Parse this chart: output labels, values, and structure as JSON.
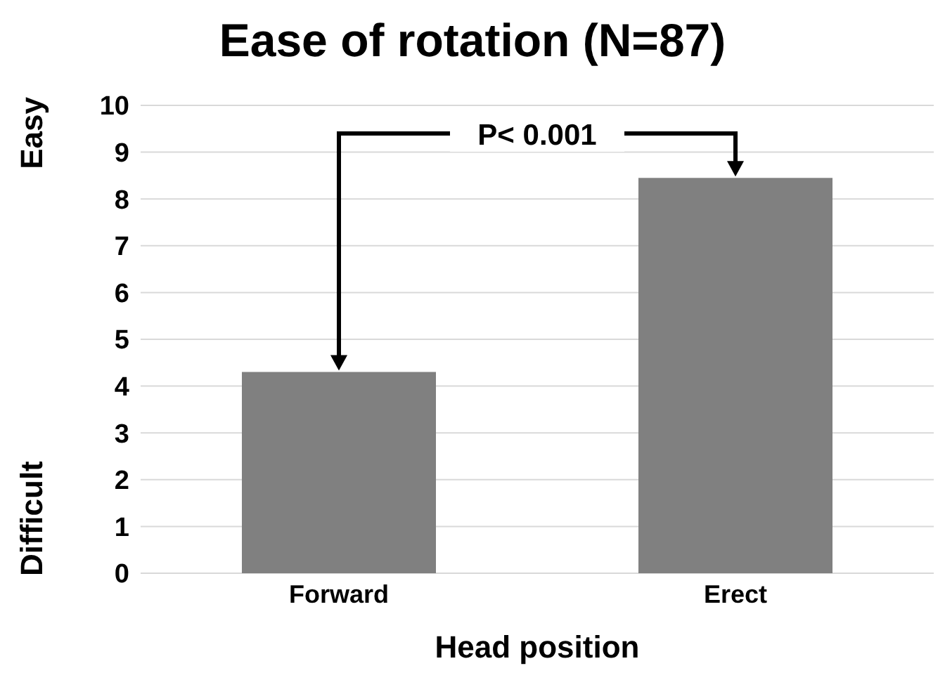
{
  "chart_data": {
    "type": "bar",
    "title": "Ease of rotation (N=87)",
    "xlabel": "Head position",
    "categories": [
      "Forward",
      "Erect"
    ],
    "values": [
      4.3,
      8.45
    ],
    "color": "#808080",
    "ylim": [
      0,
      10
    ],
    "yticks": [
      0,
      1,
      2,
      3,
      4,
      5,
      6,
      7,
      8,
      9,
      10
    ],
    "grid": "y",
    "annotations": [
      "Easy",
      "Difficult",
      "P< 0.001"
    ]
  }
}
